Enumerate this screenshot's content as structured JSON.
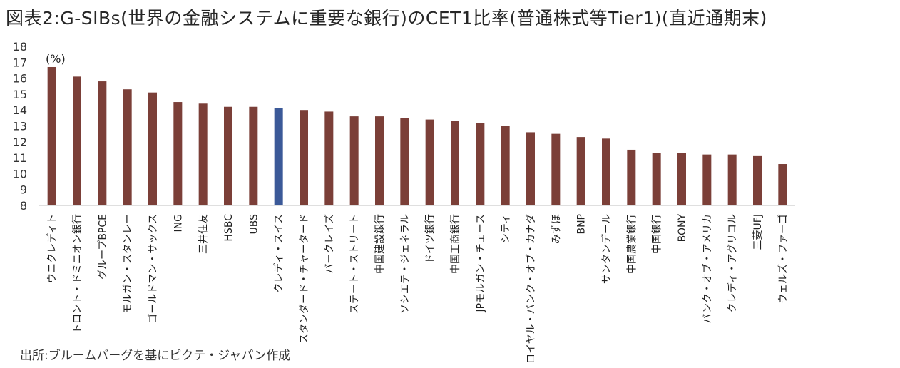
{
  "title": "図表2:G-SIBs(世界の金融システムに重要な銀行)のCET1比率(普通株式等Tier1)(直近通期末)",
  "source": "出所:ブルームバーグを基にピクテ・ジャパン作成",
  "chart_data": {
    "type": "bar",
    "unit_label": "(%)",
    "ylim": [
      8,
      18
    ],
    "yticks": [
      8,
      9,
      10,
      11,
      12,
      13,
      14,
      15,
      16,
      17,
      18
    ],
    "grid": false,
    "categories": [
      "ウニクレディト",
      "トロント・ドミニオン銀行",
      "グループBPCE",
      "モルガン・スタンレー",
      "ゴールドマン・サックス",
      "ING",
      "三井住友",
      "HSBC",
      "UBS",
      "クレディ・スイス",
      "スタンダード・チャータード",
      "バークレイズ",
      "ステート・ストリート",
      "中国建設銀行",
      "ソシエテ・ジェネラル",
      "ドイツ銀行",
      "中国工商銀行",
      "JPモルガン・チェース",
      "シティ",
      "ロイヤル・バンク・オブ・カナダ",
      "みずほ",
      "BNP",
      "サンタンデール",
      "中国農業銀行",
      "中国銀行",
      "BONY",
      "バンク・オブ・アメリカ",
      "クレディ・アグリコル",
      "三菱UFJ",
      "ウェルズ・ファーゴ"
    ],
    "values": [
      16.7,
      16.1,
      15.8,
      15.3,
      15.1,
      14.5,
      14.4,
      14.2,
      14.2,
      14.1,
      14.0,
      13.9,
      13.6,
      13.6,
      13.5,
      13.4,
      13.3,
      13.2,
      13.0,
      12.6,
      12.5,
      12.3,
      12.2,
      11.5,
      11.3,
      11.3,
      11.2,
      11.2,
      11.1,
      10.6
    ],
    "highlight": "クレディ・スイス",
    "colors": {
      "bar": "#7b3f38",
      "highlight": "#3b5998",
      "axis": "#bfbfbf"
    }
  }
}
